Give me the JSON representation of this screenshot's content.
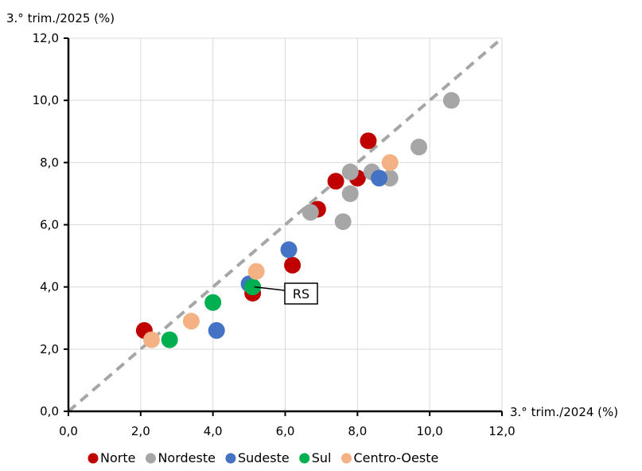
{
  "chart_data": {
    "type": "scatter",
    "title": "",
    "xlabel": "3.° trim./2024 (%)",
    "ylabel": "3.° trim./2025 (%)",
    "xlim": [
      0,
      12
    ],
    "ylim": [
      0,
      12
    ],
    "x_ticks": [
      "0,0",
      "2,0",
      "4,0",
      "6,0",
      "8,0",
      "10,0",
      "12,0"
    ],
    "y_ticks": [
      "0,0",
      "2,0",
      "4,0",
      "6,0",
      "8,0",
      "10,0",
      "12,0"
    ],
    "grid": true,
    "reference_line": {
      "type": "y=x",
      "style": "dashed",
      "color": "#A6A6A6"
    },
    "legend_position": "bottom",
    "series": [
      {
        "name": "Norte",
        "color": "#C00000",
        "points": [
          [
            2.1,
            2.6
          ],
          [
            5.1,
            3.8
          ],
          [
            6.2,
            4.7
          ],
          [
            6.9,
            6.5
          ],
          [
            7.4,
            7.4
          ],
          [
            8.0,
            7.5
          ],
          [
            8.3,
            8.7
          ]
        ]
      },
      {
        "name": "Nordeste",
        "color": "#A6A6A6",
        "points": [
          [
            6.7,
            6.4
          ],
          [
            7.6,
            6.1
          ],
          [
            7.8,
            7.0
          ],
          [
            7.8,
            7.7
          ],
          [
            8.4,
            7.7
          ],
          [
            8.9,
            7.5
          ],
          [
            9.7,
            8.5
          ],
          [
            10.6,
            10.0
          ]
        ]
      },
      {
        "name": "Sudeste",
        "color": "#4472C4",
        "points": [
          [
            4.1,
            2.6
          ],
          [
            5.0,
            4.1
          ],
          [
            6.1,
            5.2
          ],
          [
            8.6,
            7.5
          ]
        ]
      },
      {
        "name": "Sul",
        "color": "#00B050",
        "points": [
          [
            2.8,
            2.3
          ],
          [
            4.0,
            3.5
          ],
          [
            5.1,
            4.0
          ]
        ]
      },
      {
        "name": "Centro-Oeste",
        "color": "#F4B183",
        "points": [
          [
            2.3,
            2.3
          ],
          [
            3.4,
            2.9
          ],
          [
            5.2,
            4.5
          ],
          [
            8.9,
            8.0
          ]
        ]
      }
    ],
    "annotations": [
      {
        "text": "RS",
        "point": [
          5.1,
          4.0
        ]
      }
    ]
  }
}
